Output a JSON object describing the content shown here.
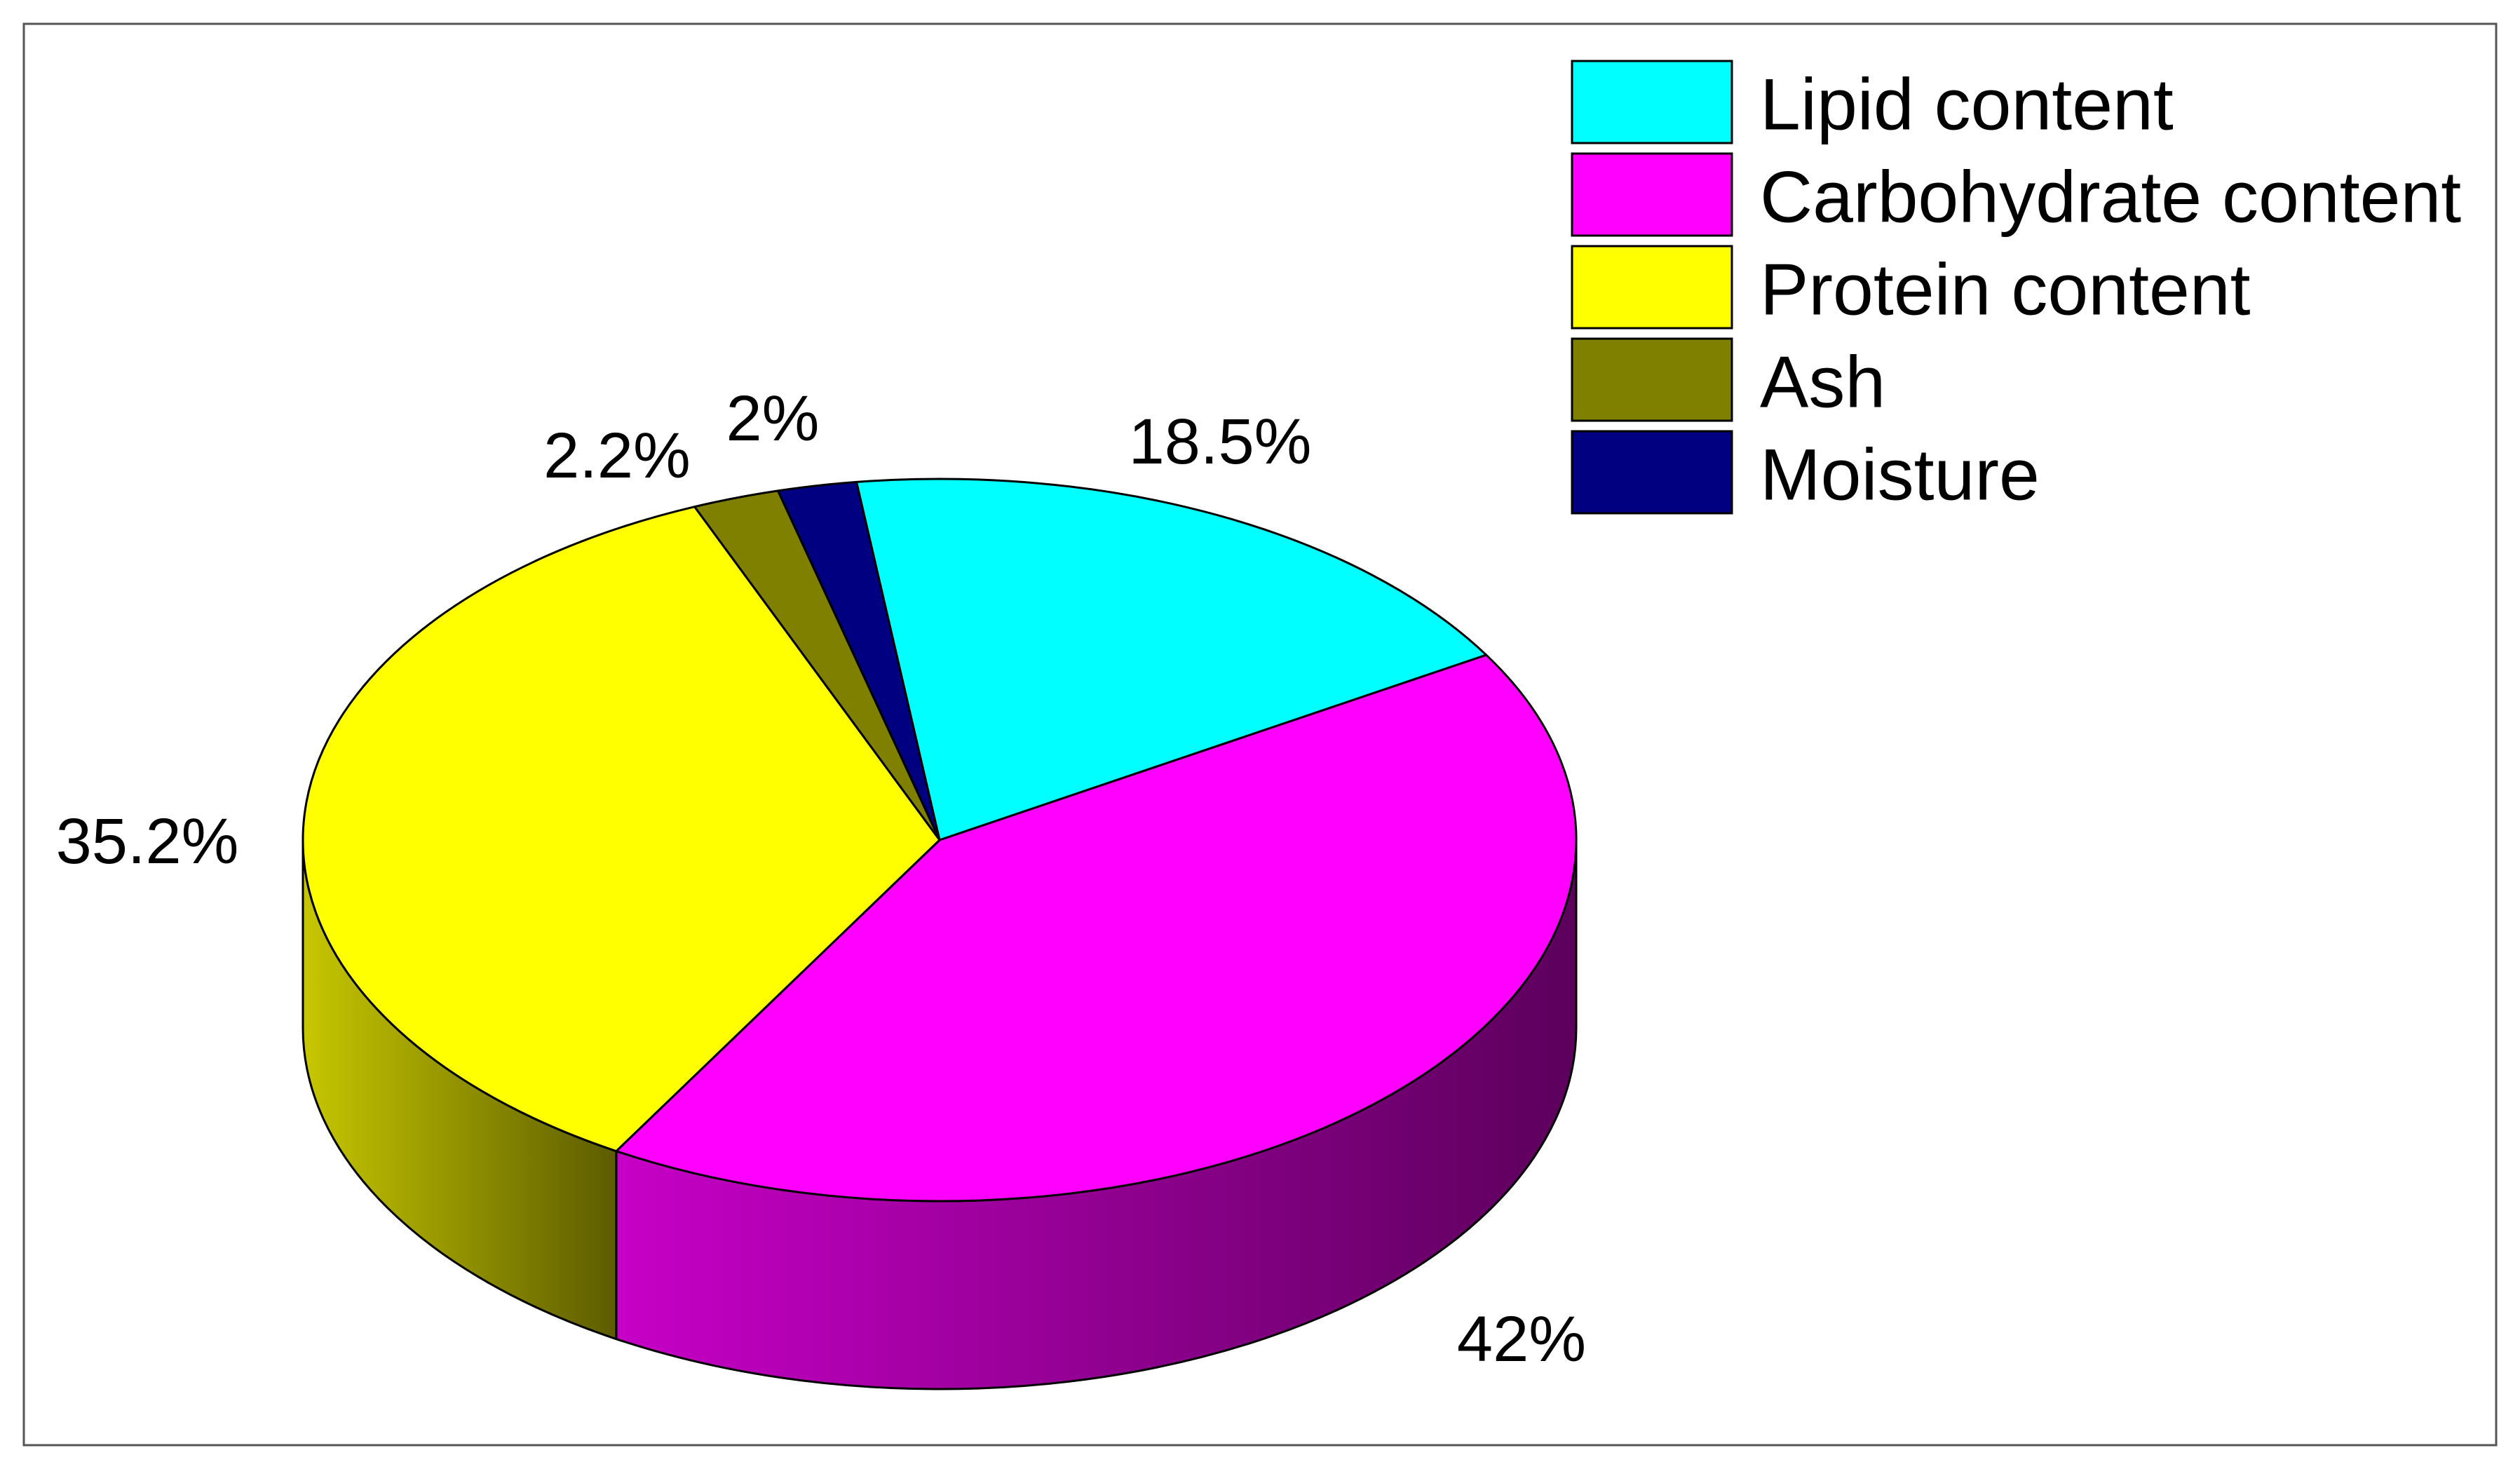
{
  "chart_data": {
    "type": "pie",
    "style": "3d",
    "title": "",
    "legend_position": "top-right",
    "series": [
      {
        "name": "Lipid content",
        "value": 18.5,
        "label": "18.5%",
        "color": "#00ffff"
      },
      {
        "name": "Carbohydrate content",
        "value": 42,
        "label": "42%",
        "color": "#ff00ff"
      },
      {
        "name": "Protein content",
        "value": 35.2,
        "label": "35.2%",
        "color": "#ffff00"
      },
      {
        "name": "Ash",
        "value": 2.2,
        "label": "2.2%",
        "color": "#808000"
      },
      {
        "name": "Moisture",
        "value": 2,
        "label": "2%",
        "color": "#000080"
      }
    ]
  }
}
